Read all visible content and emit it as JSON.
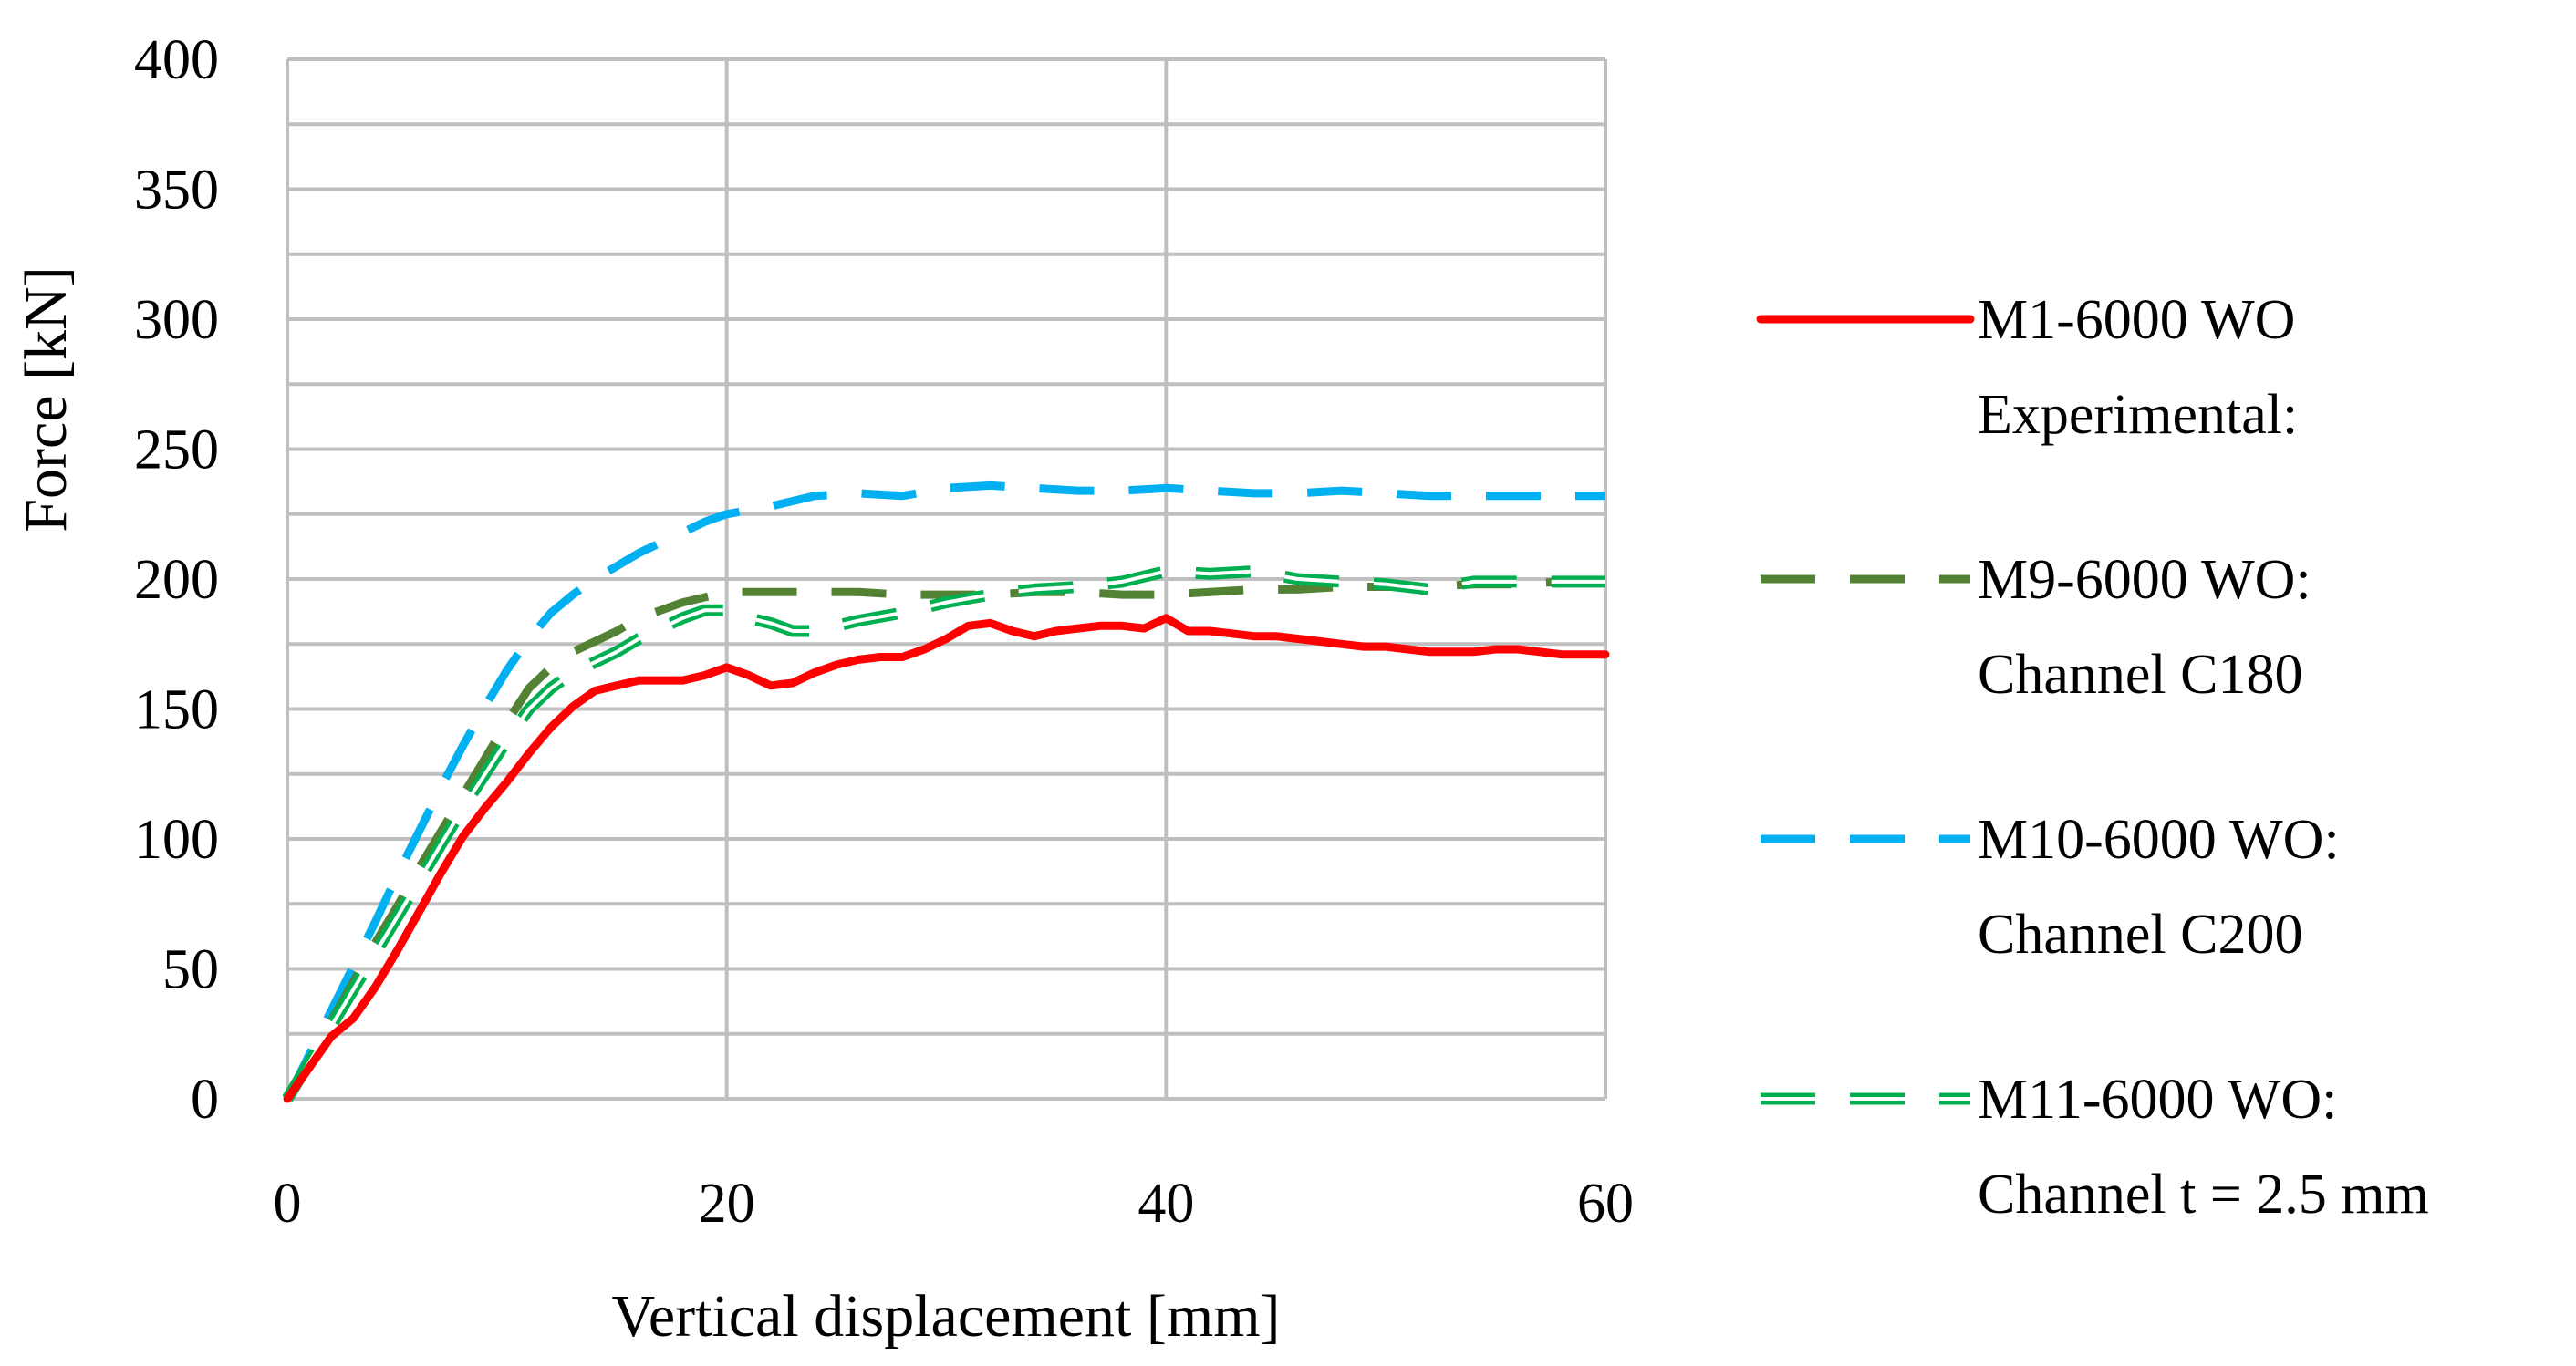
{
  "chart_data": {
    "type": "line",
    "title": "",
    "xlabel": "Vertical displacement [mm]",
    "ylabel": "Force [kN]",
    "xlim": [
      0,
      60
    ],
    "ylim": [
      0,
      400
    ],
    "xticks": [
      0,
      20,
      40,
      60
    ],
    "yticks": [
      0,
      50,
      100,
      150,
      200,
      250,
      300,
      350,
      400
    ],
    "xtick_labels": [
      "0",
      "20",
      "40",
      "60"
    ],
    "ytick_labels": [
      "0",
      "50",
      "100",
      "150",
      "200",
      "250",
      "300",
      "350",
      "400"
    ],
    "grid": true,
    "legend_position": "right",
    "series": [
      {
        "name": "M1-6000 WO Experimental:",
        "legend_lines": [
          "M1-6000 WO",
          "Experimental:"
        ],
        "color": "#ff0000",
        "style": "solid",
        "x": [
          0,
          1,
          2,
          3,
          4,
          5,
          6,
          7,
          8,
          9,
          10,
          11,
          12,
          13,
          14,
          15,
          16,
          17,
          18,
          19,
          20,
          21,
          22,
          23,
          24,
          25,
          26,
          27,
          28,
          29,
          30,
          31,
          32,
          33,
          34,
          35,
          36,
          37,
          38,
          39,
          40,
          41,
          42,
          43,
          44,
          45,
          46,
          47,
          48,
          49,
          50,
          51,
          52,
          53,
          54,
          55,
          56,
          57,
          58,
          59,
          60
        ],
        "y": [
          0,
          12,
          24,
          31,
          43,
          57,
          72,
          87,
          101,
          112,
          122,
          133,
          143,
          151,
          157,
          159,
          161,
          161,
          161,
          163,
          166,
          163,
          159,
          160,
          164,
          167,
          169,
          170,
          170,
          173,
          177,
          182,
          183,
          180,
          178,
          180,
          181,
          182,
          182,
          181,
          185,
          180,
          180,
          179,
          178,
          178,
          177,
          176,
          175,
          174,
          174,
          173,
          172,
          172,
          172,
          173,
          173,
          172,
          171,
          171,
          171
        ]
      },
      {
        "name": "M9-6000 WO: Channel C180",
        "legend_lines": [
          "M9-6000 WO:",
          "Channel C180"
        ],
        "color": "#548235",
        "style": "dash",
        "x": [
          0,
          1,
          2,
          3,
          4,
          5,
          6,
          7,
          8,
          9,
          10,
          11,
          12,
          13,
          14,
          15,
          16,
          17,
          18,
          19,
          20,
          22,
          24,
          26,
          28,
          30,
          32,
          34,
          36,
          38,
          40,
          42,
          44,
          46,
          48,
          50,
          52,
          54,
          56,
          58,
          60
        ],
        "y": [
          0,
          15,
          30,
          45,
          60,
          74,
          89,
          103,
          117,
          131,
          145,
          158,
          166,
          172,
          176,
          180,
          185,
          188,
          191,
          193,
          195,
          195,
          195,
          195,
          194,
          194,
          194,
          195,
          195,
          194,
          194,
          195,
          196,
          196,
          197,
          197,
          197,
          198,
          198,
          199,
          199
        ]
      },
      {
        "name": "M10-6000 WO: Channel C200",
        "legend_lines": [
          "M10-6000 WO:",
          "Channel C200"
        ],
        "color": "#00b0f0",
        "style": "dash",
        "x": [
          0,
          1,
          2,
          3,
          4,
          5,
          6,
          7,
          8,
          9,
          10,
          11,
          12,
          13,
          14,
          15,
          16,
          17,
          18,
          19,
          20,
          22,
          24,
          26,
          28,
          30,
          32,
          34,
          36,
          38,
          40,
          42,
          44,
          46,
          48,
          50,
          52,
          54,
          56,
          58,
          60
        ],
        "y": [
          0,
          17,
          34,
          51,
          68,
          86,
          103,
          120,
          136,
          151,
          165,
          177,
          187,
          194,
          200,
          205,
          210,
          214,
          218,
          222,
          225,
          228,
          232,
          233,
          232,
          235,
          236,
          235,
          234,
          234,
          235,
          234,
          233,
          233,
          234,
          233,
          232,
          232,
          232,
          232,
          232
        ]
      },
      {
        "name": "M11-6000 WO: Channel t = 2.5 mm",
        "legend_lines": [
          "M11-6000 WO:",
          "Channel t = 2.5 mm"
        ],
        "color": "#00b050",
        "style": "double-dash",
        "x": [
          0,
          1,
          2,
          3,
          4,
          5,
          6,
          7,
          8,
          9,
          10,
          11,
          12,
          13,
          14,
          15,
          16,
          17,
          18,
          19,
          20,
          21,
          22,
          23,
          24,
          25,
          26,
          28,
          30,
          32,
          34,
          36,
          38,
          40,
          42,
          44,
          46,
          48,
          50,
          52,
          54,
          56,
          58,
          60
        ],
        "y": [
          0,
          14,
          28,
          42,
          56,
          70,
          84,
          98,
          112,
          125,
          138,
          150,
          158,
          164,
          168,
          172,
          177,
          181,
          185,
          188,
          188,
          185,
          183,
          180,
          180,
          182,
          184,
          187,
          191,
          194,
          196,
          197,
          199,
          203,
          202,
          203,
          200,
          199,
          198,
          196,
          199,
          199,
          199,
          199
        ]
      }
    ]
  }
}
